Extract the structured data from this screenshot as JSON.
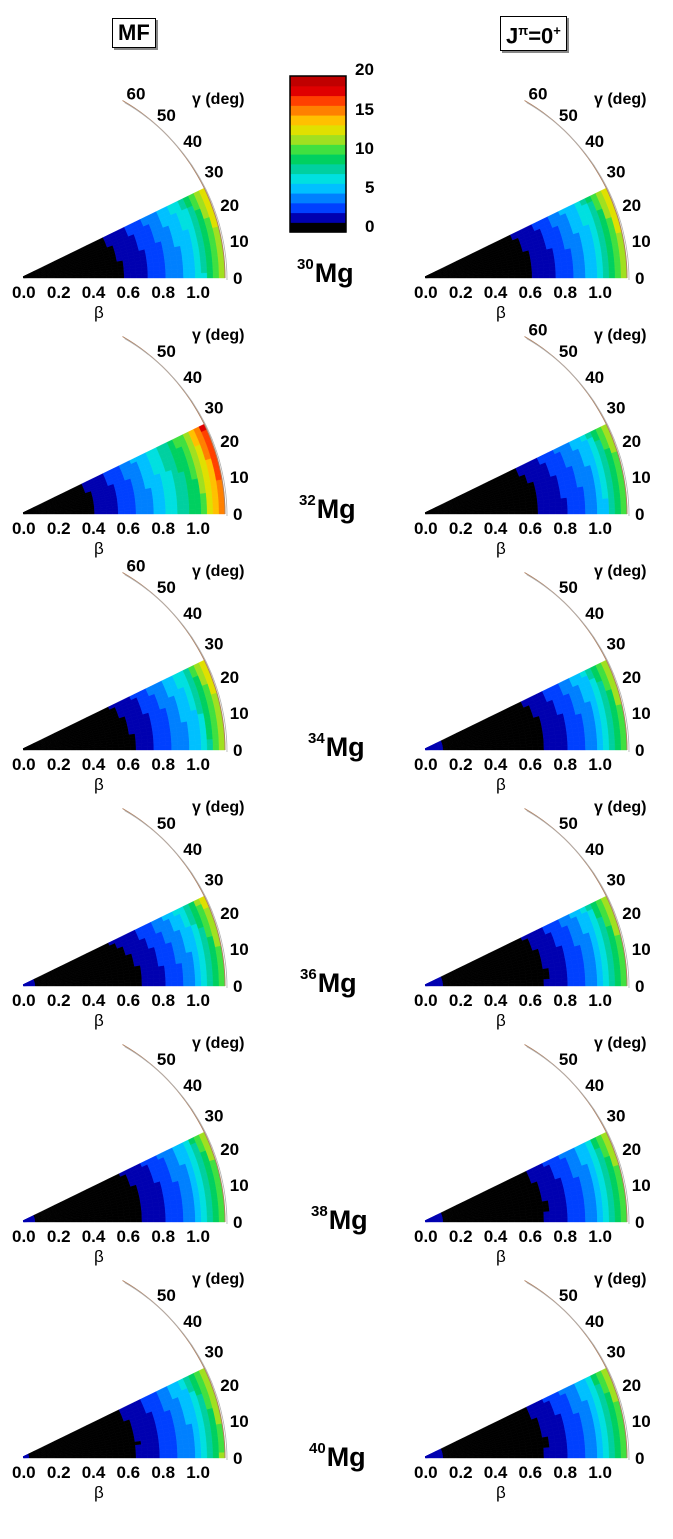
{
  "headers": {
    "left": "MF",
    "right_main": "J",
    "right_sup": "π",
    "right_tail": "=0",
    "right_tail_sup": "+"
  },
  "colorbar": {
    "ticks": [
      "20",
      "15",
      "10",
      "5",
      "0"
    ],
    "colors": [
      "#000000",
      "#0000b0",
      "#0040ff",
      "#0080ff",
      "#00c0ff",
      "#00e0e0",
      "#00d0a0",
      "#00d060",
      "#40e040",
      "#a0e020",
      "#e0e000",
      "#ffc000",
      "#ff8000",
      "#ff4000",
      "#e00000",
      "#c00000"
    ]
  },
  "chart_data": [
    {
      "id": "mf-30",
      "type": "heatmap",
      "nucleus": "30Mg",
      "min_beta": 0.25,
      "min_gamma": 0,
      "extent": [
        0.55,
        0.45,
        0.2
      ],
      "gamma_ticks": [
        "0",
        "10",
        "20",
        "30",
        "40",
        "50",
        "60"
      ],
      "gamma_label": "γ (deg)",
      "beta_ticks": [
        "0.0",
        "0.2",
        "0.4",
        "0.6",
        "0.8",
        "1.0"
      ],
      "beta_label": "β"
    },
    {
      "id": "pr-30",
      "type": "heatmap",
      "nucleus": "30Mg",
      "min_beta": 0.33,
      "min_gamma": 5,
      "extent": [
        0.55,
        0.48,
        0.25
      ],
      "gamma_ticks": [
        "0",
        "10",
        "20",
        "30",
        "40",
        "50",
        "60"
      ],
      "gamma_label": "γ (deg)",
      "beta_ticks": [
        "0.0",
        "0.2",
        "0.4",
        "0.6",
        "0.8",
        "1.0"
      ],
      "beta_label": "β"
    },
    {
      "id": "mf-32",
      "type": "heatmap",
      "nucleus": "32Mg",
      "min_beta": 0.1,
      "min_gamma": 0,
      "extent": [
        0.55,
        0.45,
        0.22
      ],
      "gamma_ticks": [
        "0",
        "10",
        "20",
        "30",
        "40",
        "50"
      ],
      "gamma_label": "γ (deg)",
      "beta_ticks": [
        "0.0",
        "0.2",
        "0.4",
        "0.6",
        "0.8",
        "1.0"
      ],
      "beta_label": "β"
    },
    {
      "id": "pr-32",
      "type": "heatmap",
      "nucleus": "32Mg",
      "min_beta": 0.35,
      "min_gamma": 3,
      "extent": [
        0.6,
        0.5,
        0.25
      ],
      "gamma_ticks": [
        "0",
        "10",
        "20",
        "30",
        "40",
        "50",
        "60"
      ],
      "gamma_label": "γ (deg)",
      "beta_ticks": [
        "0.0",
        "0.2",
        "0.4",
        "0.6",
        "0.8",
        "1.0"
      ],
      "beta_label": "β"
    },
    {
      "id": "mf-34",
      "type": "heatmap",
      "nucleus": "34Mg",
      "min_beta": 0.35,
      "min_gamma": 3,
      "extent": [
        0.55,
        0.48,
        0.25
      ],
      "gamma_ticks": [
        "0",
        "10",
        "20",
        "30",
        "40",
        "50",
        "60"
      ],
      "gamma_label": "γ (deg)",
      "beta_ticks": [
        "0.0",
        "0.2",
        "0.4",
        "0.6",
        "0.8",
        "1.0"
      ],
      "beta_label": "β"
    },
    {
      "id": "pr-34",
      "type": "heatmap",
      "nucleus": "34Mg",
      "min_beta": 0.42,
      "min_gamma": 6,
      "extent": [
        0.45,
        0.4,
        0.18
      ],
      "gamma_ticks": [
        "0",
        "10",
        "20",
        "30",
        "40",
        "50"
      ],
      "gamma_label": "γ (deg)",
      "beta_ticks": [
        "0.0",
        "0.2",
        "0.4",
        "0.6",
        "0.8",
        "1.0"
      ],
      "beta_label": "β"
    },
    {
      "id": "mf-36",
      "type": "heatmap",
      "nucleus": "36Mg",
      "min_beta": 0.4,
      "min_gamma": 0,
      "extent": [
        0.55,
        0.48,
        0.25
      ],
      "gamma_ticks": [
        "0",
        "10",
        "20",
        "30",
        "40",
        "50"
      ],
      "gamma_label": "γ (deg)",
      "beta_ticks": [
        "0.0",
        "0.2",
        "0.4",
        "0.6",
        "0.8",
        "1.0"
      ],
      "beta_label": "β"
    },
    {
      "id": "pr-36",
      "type": "heatmap",
      "nucleus": "36Mg",
      "min_beta": 0.43,
      "min_gamma": 6,
      "extent": [
        0.42,
        0.38,
        0.16
      ],
      "gamma_ticks": [
        "0",
        "10",
        "20",
        "30",
        "40",
        "50"
      ],
      "gamma_label": "γ (deg)",
      "beta_ticks": [
        "0.0",
        "0.2",
        "0.4",
        "0.6",
        "0.8",
        "1.0"
      ],
      "beta_label": "β"
    },
    {
      "id": "mf-38",
      "type": "heatmap",
      "nucleus": "38Mg",
      "min_beta": 0.4,
      "min_gamma": 10,
      "extent": [
        0.55,
        0.48,
        0.25
      ],
      "gamma_ticks": [
        "0",
        "10",
        "20",
        "30",
        "40",
        "50"
      ],
      "gamma_label": "γ (deg)",
      "beta_ticks": [
        "0.0",
        "0.2",
        "0.4",
        "0.6",
        "0.8",
        "1.0"
      ],
      "beta_label": "β"
    },
    {
      "id": "pr-38",
      "type": "heatmap",
      "nucleus": "38Mg",
      "min_beta": 0.43,
      "min_gamma": 8,
      "extent": [
        0.42,
        0.38,
        0.16
      ],
      "gamma_ticks": [
        "0",
        "10",
        "20",
        "30",
        "40",
        "50"
      ],
      "gamma_label": "γ (deg)",
      "beta_ticks": [
        "0.0",
        "0.2",
        "0.4",
        "0.6",
        "0.8",
        "1.0"
      ],
      "beta_label": "β"
    },
    {
      "id": "mf-40",
      "type": "heatmap",
      "nucleus": "40Mg",
      "min_beta": 0.38,
      "min_gamma": 8,
      "extent": [
        0.55,
        0.48,
        0.25
      ],
      "gamma_ticks": [
        "0",
        "10",
        "20",
        "30",
        "40",
        "50"
      ],
      "gamma_label": "γ (deg)",
      "beta_ticks": [
        "0.0",
        "0.2",
        "0.4",
        "0.6",
        "0.8",
        "1.0"
      ],
      "beta_label": "β"
    },
    {
      "id": "pr-40",
      "type": "heatmap",
      "nucleus": "40Mg",
      "min_beta": 0.43,
      "min_gamma": 8,
      "extent": [
        0.42,
        0.38,
        0.16
      ],
      "gamma_ticks": [
        "0",
        "10",
        "20",
        "30",
        "40",
        "50"
      ],
      "gamma_label": "γ (deg)",
      "beta_ticks": [
        "0.0",
        "0.2",
        "0.4",
        "0.6",
        "0.8",
        "1.0"
      ],
      "beta_label": "β"
    }
  ],
  "nuclei": [
    {
      "mass": "30",
      "symbol": "Mg"
    },
    {
      "mass": "32",
      "symbol": "Mg"
    },
    {
      "mass": "34",
      "symbol": "Mg"
    },
    {
      "mass": "36",
      "symbol": "Mg"
    },
    {
      "mass": "38",
      "symbol": "Mg"
    },
    {
      "mass": "40",
      "symbol": "Mg"
    }
  ]
}
